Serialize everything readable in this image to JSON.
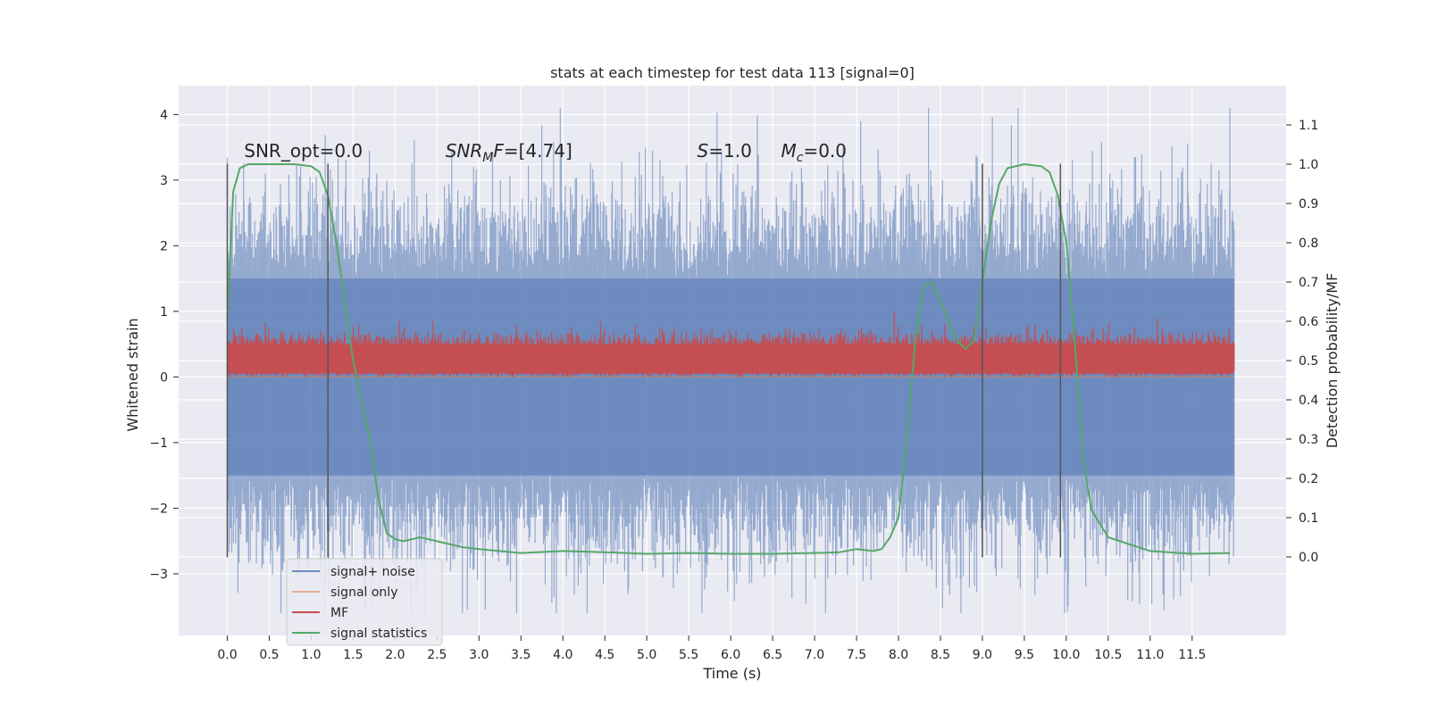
{
  "chart_data": {
    "type": "line",
    "title": "stats at each timestep for test data 113 [signal=0]",
    "xlabel": "Time (s)",
    "ylabel_left": "Whitened strain",
    "ylabel_right": "Detection probability/MF",
    "xlim": [
      -0.58,
      12.62
    ],
    "ylim_left": [
      -3.94,
      4.44
    ],
    "ylim_right": [
      -0.2,
      1.2
    ],
    "x_ticks": [
      "0.0",
      "0.5",
      "1.0",
      "1.5",
      "2.0",
      "2.5",
      "3.0",
      "3.5",
      "4.0",
      "4.5",
      "5.0",
      "5.5",
      "6.0",
      "6.5",
      "7.0",
      "7.5",
      "8.0",
      "8.5",
      "9.0",
      "9.5",
      "10.0",
      "10.5",
      "11.0",
      "11.5"
    ],
    "y_left_ticks": [
      -3,
      -2,
      -1,
      0,
      1,
      2,
      3,
      4
    ],
    "y_right_ticks": [
      "0.0",
      "0.1",
      "0.2",
      "0.3",
      "0.4",
      "0.5",
      "0.6",
      "0.7",
      "0.8",
      "0.9",
      "1.0",
      "1.1"
    ],
    "grid": true,
    "legend_position": "lower-left",
    "annotations": [
      {
        "text": "SNR_opt=0.0",
        "x": 0.2
      },
      {
        "text": "SNR_MF=[4.74]",
        "x": 2.6
      },
      {
        "text": "S=1.0",
        "x": 5.6
      },
      {
        "text": "M_c=0.0",
        "x": 6.6
      }
    ],
    "vertical_lines": [
      0.0,
      1.2,
      9.0,
      9.93
    ],
    "series": [
      {
        "name": "signal+ noise",
        "axis": "left",
        "color": "#4c72b0",
        "x_range": [
          0.0,
          12.0
        ],
        "approx_band": {
          "core_low": -1.5,
          "core_high": 1.5,
          "max": 4.1,
          "min": -3.6
        },
        "notable_peaks": [
          [
            7.55,
            3.9
          ],
          [
            11.95,
            4.1
          ],
          [
            9.98,
            -3.6
          ],
          [
            10.02,
            -3.5
          ]
        ]
      },
      {
        "name": "signal only",
        "axis": "left",
        "color": "#dd8452",
        "x": [
          0.0,
          12.0
        ],
        "y": [
          0.0,
          0.0
        ]
      },
      {
        "name": "MF",
        "axis": "left",
        "color": "#c44e52",
        "x_range": [
          0.0,
          12.0
        ],
        "approx_band": {
          "low": 0.0,
          "mean": 0.3,
          "high": 0.75,
          "max": 1.0
        }
      },
      {
        "name": "signal statistics",
        "axis": "right",
        "color": "#55a868",
        "x": [
          0.0,
          0.07,
          0.15,
          0.25,
          0.5,
          0.8,
          1.0,
          1.1,
          1.2,
          1.3,
          1.4,
          1.5,
          1.6,
          1.7,
          1.8,
          1.9,
          2.0,
          2.1,
          2.2,
          2.3,
          2.4,
          2.5,
          2.6,
          2.8,
          3.0,
          3.5,
          4.0,
          4.5,
          5.0,
          5.5,
          6.0,
          6.5,
          7.0,
          7.3,
          7.5,
          7.7,
          7.8,
          7.9,
          8.0,
          8.1,
          8.2,
          8.3,
          8.4,
          8.5,
          8.6,
          8.7,
          8.8,
          8.9,
          9.0,
          9.1,
          9.2,
          9.3,
          9.5,
          9.7,
          9.8,
          9.9,
          10.0,
          10.1,
          10.2,
          10.3,
          10.5,
          11.0,
          11.5,
          11.95
        ],
        "y": [
          0.6,
          0.93,
          0.99,
          1.0,
          1.0,
          1.0,
          0.995,
          0.98,
          0.92,
          0.8,
          0.65,
          0.5,
          0.4,
          0.3,
          0.15,
          0.06,
          0.045,
          0.04,
          0.045,
          0.05,
          0.045,
          0.04,
          0.035,
          0.025,
          0.02,
          0.01,
          0.015,
          0.012,
          0.008,
          0.01,
          0.008,
          0.008,
          0.01,
          0.012,
          0.02,
          0.015,
          0.02,
          0.05,
          0.1,
          0.3,
          0.55,
          0.69,
          0.7,
          0.65,
          0.6,
          0.55,
          0.53,
          0.55,
          0.7,
          0.85,
          0.95,
          0.99,
          1.0,
          0.995,
          0.98,
          0.92,
          0.8,
          0.55,
          0.25,
          0.12,
          0.05,
          0.015,
          0.008,
          0.01
        ]
      }
    ]
  }
}
